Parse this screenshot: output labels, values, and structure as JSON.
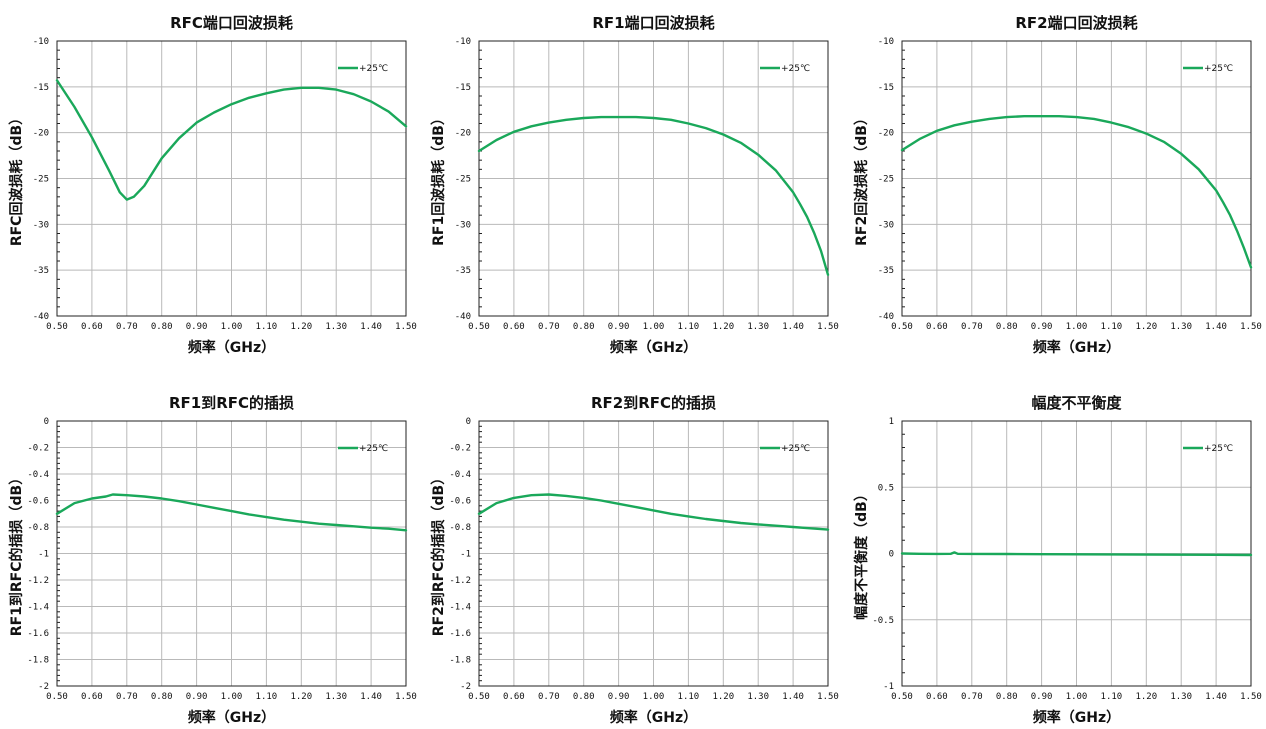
{
  "chart_data": [
    {
      "type": "line",
      "title": "RFC端口回波损耗",
      "xlabel": "频率（GHz）",
      "ylabel": "RFC回波损耗（dB）",
      "xlim": [
        0.5,
        1.5
      ],
      "ylim": [
        -40,
        -10
      ],
      "xticks": [
        0.5,
        0.6,
        0.7,
        0.8,
        0.9,
        1.0,
        1.1,
        1.2,
        1.3,
        1.4,
        1.5
      ],
      "xtick_labels": [
        "0.50",
        "0.60",
        "0.70",
        "0.80",
        "0.90",
        "1.00",
        "1.10",
        "1.20",
        "1.30",
        "1.40",
        "1.50"
      ],
      "yticks": [
        -10,
        -15,
        -20,
        -25,
        -30,
        -35,
        -40
      ],
      "ytick_labels": [
        "-10",
        "-15",
        "-20",
        "-25",
        "-30",
        "-35",
        "-40"
      ],
      "grid": true,
      "legend_position": "top-right",
      "series": [
        {
          "name": "+25℃",
          "color": "#1aa85a",
          "x": [
            0.5,
            0.55,
            0.6,
            0.65,
            0.68,
            0.7,
            0.72,
            0.75,
            0.8,
            0.85,
            0.9,
            0.95,
            1.0,
            1.05,
            1.1,
            1.15,
            1.2,
            1.25,
            1.3,
            1.35,
            1.4,
            1.45,
            1.5
          ],
          "values": [
            -14.3,
            -17.2,
            -20.5,
            -24.2,
            -26.5,
            -27.3,
            -27.0,
            -25.8,
            -22.8,
            -20.6,
            -18.9,
            -17.8,
            -16.9,
            -16.2,
            -15.7,
            -15.3,
            -15.1,
            -15.1,
            -15.3,
            -15.8,
            -16.6,
            -17.7,
            -19.3
          ]
        }
      ]
    },
    {
      "type": "line",
      "title": "RF1端口回波损耗",
      "xlabel": "频率（GHz）",
      "ylabel": "RF1回波损耗（dB）",
      "xlim": [
        0.5,
        1.5
      ],
      "ylim": [
        -40,
        -10
      ],
      "xticks": [
        0.5,
        0.6,
        0.7,
        0.8,
        0.9,
        1.0,
        1.1,
        1.2,
        1.3,
        1.4,
        1.5
      ],
      "xtick_labels": [
        "0.50",
        "0.60",
        "0.70",
        "0.80",
        "0.90",
        "1.00",
        "1.10",
        "1.20",
        "1.30",
        "1.40",
        "1.50"
      ],
      "yticks": [
        -10,
        -15,
        -20,
        -25,
        -30,
        -35,
        -40
      ],
      "ytick_labels": [
        "-10",
        "-15",
        "-20",
        "-25",
        "-30",
        "-35",
        "-40"
      ],
      "grid": true,
      "legend_position": "top-right",
      "series": [
        {
          "name": "+25℃",
          "color": "#1aa85a",
          "x": [
            0.5,
            0.55,
            0.6,
            0.65,
            0.7,
            0.75,
            0.8,
            0.85,
            0.9,
            0.95,
            1.0,
            1.05,
            1.1,
            1.15,
            1.2,
            1.25,
            1.3,
            1.35,
            1.4,
            1.42,
            1.44,
            1.46,
            1.48,
            1.5
          ],
          "values": [
            -22.0,
            -20.8,
            -19.9,
            -19.3,
            -18.9,
            -18.6,
            -18.4,
            -18.3,
            -18.3,
            -18.3,
            -18.4,
            -18.6,
            -19.0,
            -19.5,
            -20.2,
            -21.1,
            -22.4,
            -24.1,
            -26.5,
            -27.8,
            -29.2,
            -30.9,
            -32.9,
            -35.5
          ]
        }
      ]
    },
    {
      "type": "line",
      "title": "RF2端口回波损耗",
      "xlabel": "频率（GHz）",
      "ylabel": "RF2回波损耗（dB）",
      "xlim": [
        0.5,
        1.5
      ],
      "ylim": [
        -40,
        -10
      ],
      "xticks": [
        0.5,
        0.6,
        0.7,
        0.8,
        0.9,
        1.0,
        1.1,
        1.2,
        1.3,
        1.4,
        1.5
      ],
      "xtick_labels": [
        "0.50",
        "0.60",
        "0.70",
        "0.80",
        "0.90",
        "1.00",
        "1.10",
        "1.20",
        "1.30",
        "1.40",
        "1.50"
      ],
      "yticks": [
        -10,
        -15,
        -20,
        -25,
        -30,
        -35,
        -40
      ],
      "ytick_labels": [
        "-10",
        "-15",
        "-20",
        "-25",
        "-30",
        "-35",
        "-40"
      ],
      "grid": true,
      "legend_position": "top-right",
      "series": [
        {
          "name": "+25℃",
          "color": "#1aa85a",
          "x": [
            0.5,
            0.55,
            0.6,
            0.65,
            0.7,
            0.75,
            0.8,
            0.85,
            0.9,
            0.95,
            1.0,
            1.05,
            1.1,
            1.15,
            1.2,
            1.25,
            1.3,
            1.35,
            1.4,
            1.42,
            1.44,
            1.46,
            1.48,
            1.5
          ],
          "values": [
            -21.9,
            -20.7,
            -19.8,
            -19.2,
            -18.8,
            -18.5,
            -18.3,
            -18.2,
            -18.2,
            -18.2,
            -18.3,
            -18.5,
            -18.9,
            -19.4,
            -20.1,
            -21.0,
            -22.3,
            -24.0,
            -26.3,
            -27.6,
            -29.0,
            -30.7,
            -32.6,
            -34.7
          ]
        }
      ]
    },
    {
      "type": "line",
      "title": "RF1到RFC的插损",
      "xlabel": "频率（GHz）",
      "ylabel": "RF1到RFC的插损（dB）",
      "xlim": [
        0.5,
        1.5
      ],
      "ylim": [
        -2,
        0
      ],
      "xticks": [
        0.5,
        0.6,
        0.7,
        0.8,
        0.9,
        1.0,
        1.1,
        1.2,
        1.3,
        1.4,
        1.5
      ],
      "xtick_labels": [
        "0.50",
        "0.60",
        "0.70",
        "0.80",
        "0.90",
        "1.00",
        "1.10",
        "1.20",
        "1.30",
        "1.40",
        "1.50"
      ],
      "yticks": [
        0,
        -0.2,
        -0.4,
        -0.6,
        -0.8,
        -1,
        -1.2,
        -1.4,
        -1.6,
        -1.8,
        -2
      ],
      "ytick_labels": [
        "0",
        "-0.2",
        "-0.4",
        "-0.6",
        "-0.8",
        "-1",
        "-1.2",
        "-1.4",
        "-1.6",
        "-1.8",
        "-2"
      ],
      "grid": true,
      "legend_position": "top-right",
      "series": [
        {
          "name": "+25℃",
          "color": "#1aa85a",
          "x": [
            0.5,
            0.55,
            0.6,
            0.64,
            0.66,
            0.7,
            0.75,
            0.8,
            0.85,
            0.9,
            0.95,
            1.0,
            1.05,
            1.1,
            1.15,
            1.2,
            1.25,
            1.3,
            1.35,
            1.4,
            1.45,
            1.5
          ],
          "values": [
            -0.7,
            -0.62,
            -0.585,
            -0.57,
            -0.555,
            -0.56,
            -0.57,
            -0.585,
            -0.605,
            -0.63,
            -0.655,
            -0.68,
            -0.705,
            -0.725,
            -0.745,
            -0.76,
            -0.775,
            -0.785,
            -0.795,
            -0.805,
            -0.813,
            -0.825
          ]
        }
      ]
    },
    {
      "type": "line",
      "title": "RF2到RFC的插损",
      "xlabel": "频率（GHz）",
      "ylabel": "RF2到RFC的插损（dB）",
      "xlim": [
        0.5,
        1.5
      ],
      "ylim": [
        -2,
        0
      ],
      "xticks": [
        0.5,
        0.6,
        0.7,
        0.8,
        0.9,
        1.0,
        1.1,
        1.2,
        1.3,
        1.4,
        1.5
      ],
      "xtick_labels": [
        "0.50",
        "0.60",
        "0.70",
        "0.80",
        "0.90",
        "1.00",
        "1.10",
        "1.20",
        "1.30",
        "1.40",
        "1.50"
      ],
      "yticks": [
        0,
        -0.2,
        -0.4,
        -0.6,
        -0.8,
        -1,
        -1.2,
        -1.4,
        -1.6,
        -1.8,
        -2
      ],
      "ytick_labels": [
        "0",
        "-0.2",
        "-0.4",
        "-0.6",
        "-0.8",
        "-1",
        "-1.2",
        "-1.4",
        "-1.6",
        "-1.8",
        "-2"
      ],
      "grid": true,
      "legend_position": "top-right",
      "series": [
        {
          "name": "+25℃",
          "color": "#1aa85a",
          "x": [
            0.5,
            0.55,
            0.6,
            0.65,
            0.7,
            0.75,
            0.8,
            0.85,
            0.9,
            0.95,
            1.0,
            1.05,
            1.1,
            1.15,
            1.2,
            1.25,
            1.3,
            1.35,
            1.4,
            1.45,
            1.5
          ],
          "values": [
            -0.7,
            -0.62,
            -0.58,
            -0.56,
            -0.555,
            -0.565,
            -0.58,
            -0.6,
            -0.625,
            -0.65,
            -0.675,
            -0.7,
            -0.72,
            -0.74,
            -0.755,
            -0.77,
            -0.78,
            -0.79,
            -0.8,
            -0.81,
            -0.82
          ]
        }
      ]
    },
    {
      "type": "line",
      "title": "幅度不平衡度",
      "xlabel": "频率（GHz）",
      "ylabel": "幅度不平衡度（dB）",
      "xlim": [
        0.5,
        1.5
      ],
      "ylim": [
        -1,
        1
      ],
      "xticks": [
        0.5,
        0.6,
        0.7,
        0.8,
        0.9,
        1.0,
        1.1,
        1.2,
        1.3,
        1.4,
        1.5
      ],
      "xtick_labels": [
        "0.50",
        "0.60",
        "0.70",
        "0.80",
        "0.90",
        "1.00",
        "1.10",
        "1.20",
        "1.30",
        "1.40",
        "1.50"
      ],
      "yticks": [
        1,
        0.5,
        0,
        -0.5,
        -1
      ],
      "ytick_labels": [
        "1",
        "0.5",
        "0",
        "-0.5",
        "-1"
      ],
      "grid": true,
      "legend_position": "top-right",
      "series": [
        {
          "name": "+25℃",
          "color": "#1aa85a",
          "x": [
            0.5,
            0.55,
            0.6,
            0.64,
            0.65,
            0.66,
            0.7,
            0.8,
            0.9,
            1.0,
            1.1,
            1.2,
            1.3,
            1.4,
            1.5
          ],
          "values": [
            0.0,
            -0.002,
            -0.003,
            -0.002,
            0.008,
            -0.002,
            -0.003,
            -0.004,
            -0.005,
            -0.006,
            -0.007,
            -0.008,
            -0.009,
            -0.01,
            -0.011
          ]
        }
      ]
    }
  ]
}
